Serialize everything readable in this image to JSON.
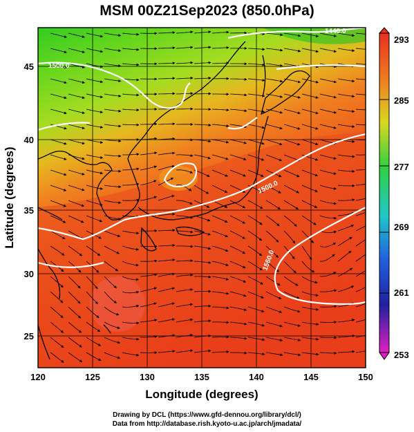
{
  "title": "MSM 00Z21Sep2023 (850.0hPa)",
  "x_axis": {
    "title": "Longitude (degrees)",
    "ticks": [
      "120",
      "125",
      "130",
      "135",
      "140",
      "145",
      "150"
    ]
  },
  "y_axis": {
    "title": "Latitude  (degrees)",
    "ticks": [
      "25",
      "30",
      "35",
      "40",
      "45"
    ]
  },
  "colorbar": {
    "labels": [
      "293",
      "285",
      "277",
      "269",
      "261",
      "253"
    ],
    "range": [
      253,
      293
    ]
  },
  "contour_labels": [
    "1440.0",
    "1500.0",
    "1500.0",
    "1560.0"
  ],
  "credits": {
    "line1": "Drawing by DCL (https://www.gfd-dennou.org/library/dcl/)",
    "line2": "Data from http://database.rish.kyoto-u.ac.jp/arch/jmadata/"
  },
  "colors": {
    "warm": "#e83a1c",
    "mild": "#f2a020",
    "cool": "#40d020",
    "coastline": "#000000",
    "contour": "#ffffff"
  }
}
